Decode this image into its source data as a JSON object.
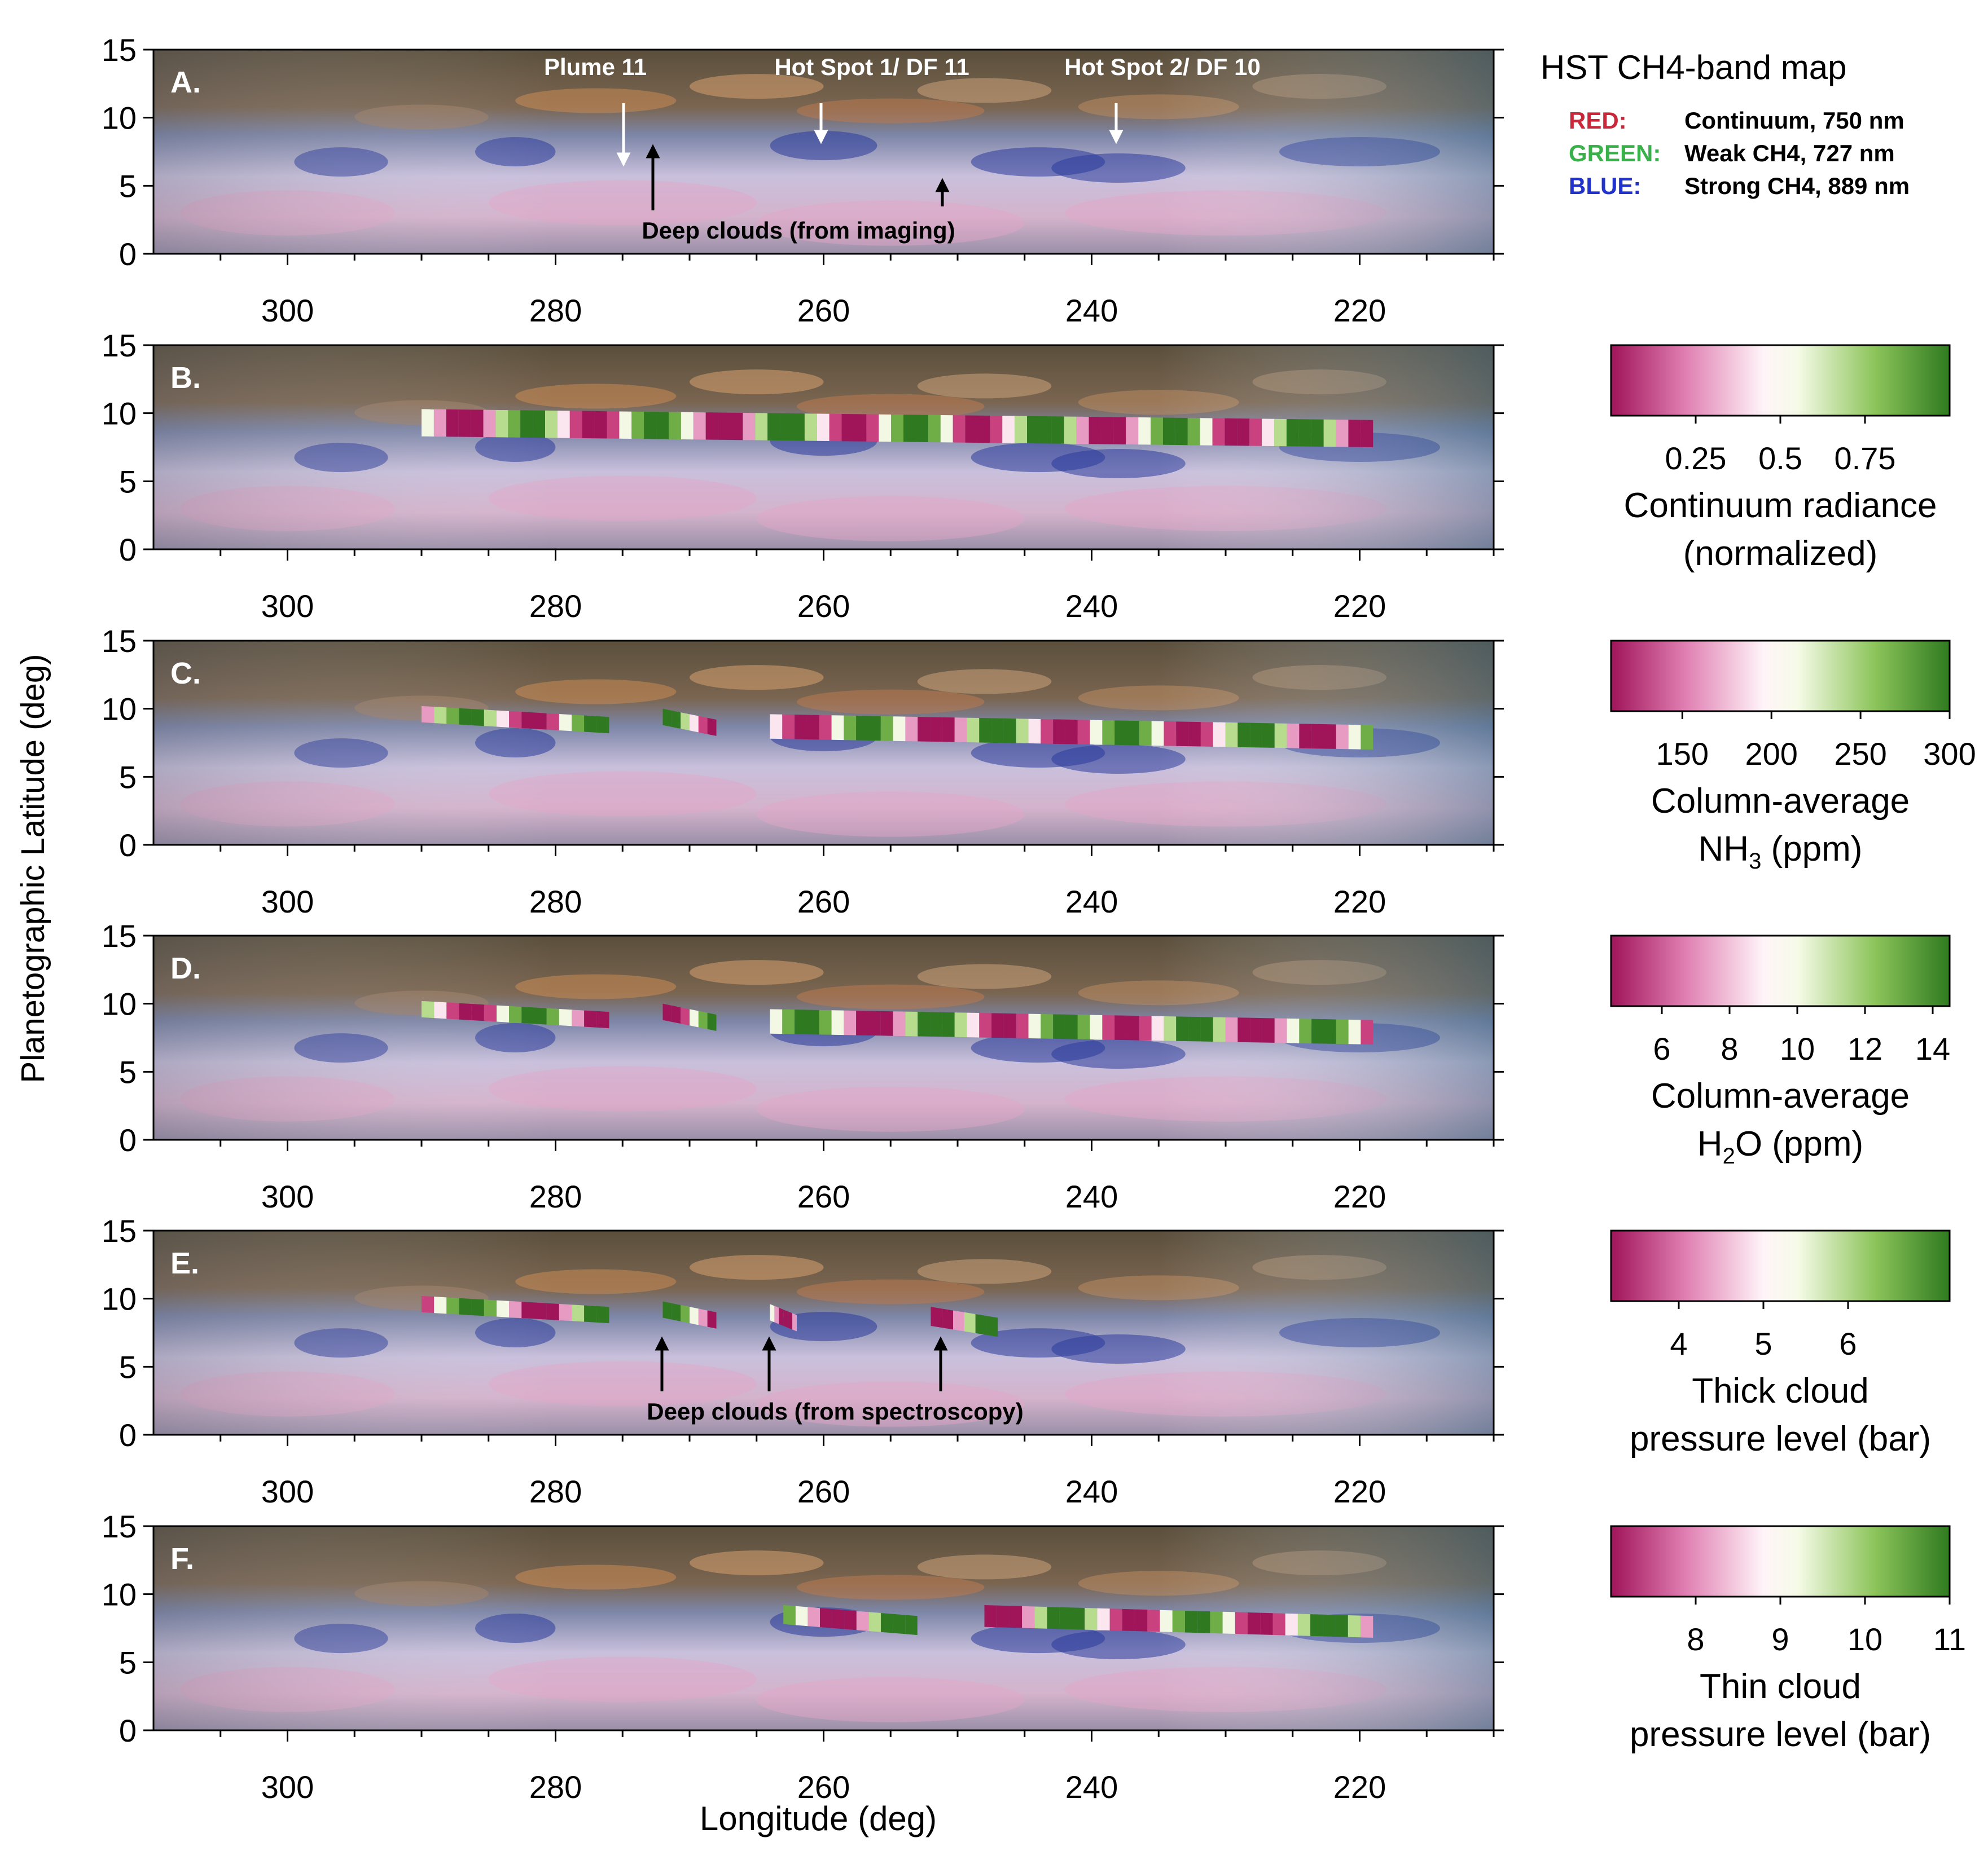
{
  "figure": {
    "y_axis_label": "Planetographic Latitude (deg)",
    "x_axis_label": "Longitude (deg)",
    "x_ticks": [
      "300",
      "280",
      "260",
      "240",
      "220"
    ],
    "y_ticks": [
      "0",
      "5",
      "10",
      "15"
    ]
  },
  "legend": {
    "title": "HST CH4-band map",
    "rows": [
      {
        "key": "RED:",
        "desc": "Continuum, 750 nm",
        "color": "#c8283a"
      },
      {
        "key": "GREEN:",
        "desc": "Weak CH4, 727 nm",
        "color": "#3ab04a"
      },
      {
        "key": "BLUE:",
        "desc": "Strong CH4, 889 nm",
        "color": "#2233cc"
      }
    ]
  },
  "panels": [
    {
      "letter": "A.",
      "annotations": {
        "plume": "Plume 11",
        "hotspot1": "Hot Spot 1/ DF 11",
        "hotspot2": "Hot Spot 2/ DF 10",
        "deep_clouds": "Deep clouds (from imaging)"
      }
    },
    {
      "letter": "B."
    },
    {
      "letter": "C."
    },
    {
      "letter": "D."
    },
    {
      "letter": "E.",
      "annotations": {
        "deep_clouds": "Deep clouds (from spectroscopy)"
      }
    },
    {
      "letter": "F."
    }
  ],
  "colorbars": [
    {
      "ticks": [
        "0.25",
        "0.5",
        "0.75"
      ],
      "label_lines": [
        "Continuum radiance",
        "(normalized)"
      ],
      "colors": {
        "low": "#a0145a",
        "mid": "#fff4f8",
        "high": "#2f7a20"
      }
    },
    {
      "ticks": [
        "150",
        "200",
        "250",
        "300"
      ],
      "label_line1": "Column-average",
      "label_prefix": "NH",
      "label_sub": "3",
      "label_suffix": " (ppm)"
    },
    {
      "ticks": [
        "6",
        "8",
        "10",
        "12",
        "14"
      ],
      "label_line1": "Column-average",
      "label_prefix": "H",
      "label_sub": "2",
      "label_suffix": "O (ppm)"
    },
    {
      "ticks": [
        "4",
        "5",
        "6"
      ],
      "label_lines": [
        "Thick cloud",
        "pressure level (bar)"
      ]
    },
    {
      "ticks": [
        "8",
        "9",
        "10",
        "11"
      ],
      "label_lines": [
        "Thin cloud",
        "pressure level (bar)"
      ]
    }
  ],
  "chart_data": {
    "type": "heatmap",
    "description_free": true,
    "x_range_deg": [
      310,
      210
    ],
    "y_range_deg": [
      0,
      15
    ],
    "panels": [
      {
        "panel": "A",
        "strips": []
      },
      {
        "panel": "B",
        "quantity": "Continuum radiance (normalized)",
        "range": [
          0.0,
          1.0
        ],
        "strips": [
          {
            "lon_start": 290,
            "lon_end": 219,
            "lat_low": 7.5,
            "lat_high": 9.5
          }
        ]
      },
      {
        "panel": "C",
        "quantity": "Column-average NH3 (ppm)",
        "range": [
          110,
          300
        ],
        "strips": [
          {
            "lon_start": 290,
            "lon_end": 276,
            "lat_low": 8.2,
            "lat_high": 9.4
          },
          {
            "lon_start": 272,
            "lon_end": 268,
            "lat_low": 8.0,
            "lat_high": 9.2
          },
          {
            "lon_start": 264,
            "lon_end": 219,
            "lat_low": 7.0,
            "lat_high": 8.8
          }
        ]
      },
      {
        "panel": "D",
        "quantity": "Column-average H2O (ppm)",
        "range": [
          4.5,
          14.5
        ],
        "strips": [
          {
            "lon_start": 290,
            "lon_end": 276,
            "lat_low": 8.2,
            "lat_high": 9.4
          },
          {
            "lon_start": 272,
            "lon_end": 268,
            "lat_low": 8.0,
            "lat_high": 9.2
          },
          {
            "lon_start": 264,
            "lon_end": 219,
            "lat_low": 7.0,
            "lat_high": 8.8
          }
        ]
      },
      {
        "panel": "E",
        "quantity": "Thick cloud pressure level (bar)",
        "range": [
          3.2,
          7.2
        ],
        "strips": [
          {
            "lon_start": 290,
            "lon_end": 276,
            "lat_low": 8.2,
            "lat_high": 9.4
          },
          {
            "lon_start": 272,
            "lon_end": 268,
            "lat_low": 7.8,
            "lat_high": 9.0
          },
          {
            "lon_start": 264,
            "lon_end": 262,
            "lat_low": 7.6,
            "lat_high": 8.8
          },
          {
            "lon_start": 252,
            "lon_end": 247,
            "lat_low": 7.2,
            "lat_high": 8.6
          }
        ]
      },
      {
        "panel": "F",
        "quantity": "Thin cloud pressure level (bar)",
        "range": [
          7.0,
          11.0
        ],
        "strips": [
          {
            "lon_start": 263,
            "lon_end": 253,
            "lat_low": 7.0,
            "lat_high": 8.4
          },
          {
            "lon_start": 248,
            "lon_end": 219,
            "lat_low": 6.8,
            "lat_high": 8.4
          }
        ]
      }
    ]
  }
}
